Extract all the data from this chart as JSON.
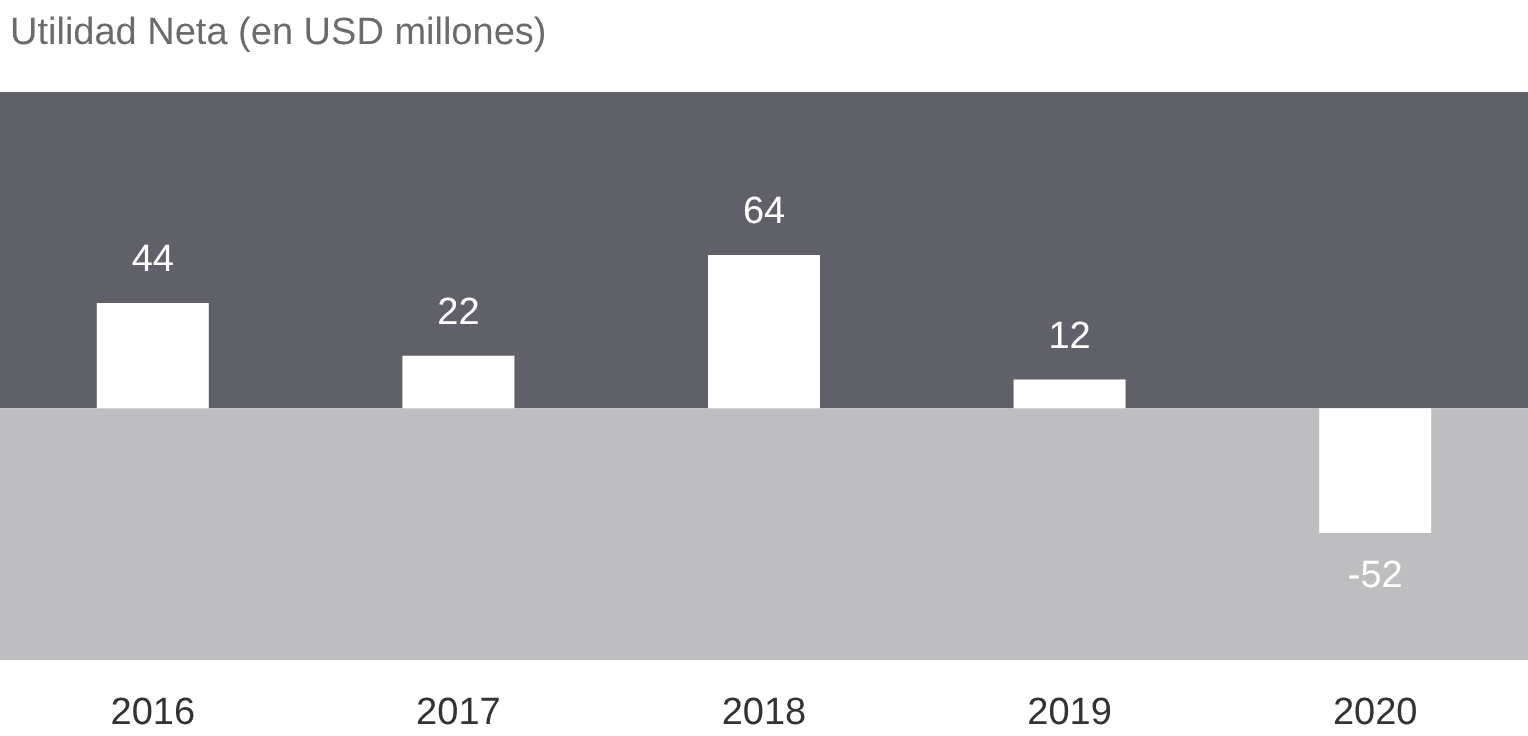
{
  "chart_data": {
    "type": "bar",
    "title": "Utilidad Neta (en USD millones)",
    "categories": [
      "2016",
      "2017",
      "2018",
      "2019",
      "2020"
    ],
    "values": [
      44,
      22,
      64,
      12,
      -52
    ],
    "color": "#ffffff",
    "ylim": [
      -105,
      132
    ],
    "tick_labels": "x",
    "grid": false,
    "data_labels": true,
    "bands": [
      {
        "axis": "y",
        "from": 0,
        "to": 132,
        "color": "#606168"
      },
      {
        "axis": "y",
        "from": -105,
        "to": 0,
        "color": "#bebec1"
      }
    ]
  }
}
